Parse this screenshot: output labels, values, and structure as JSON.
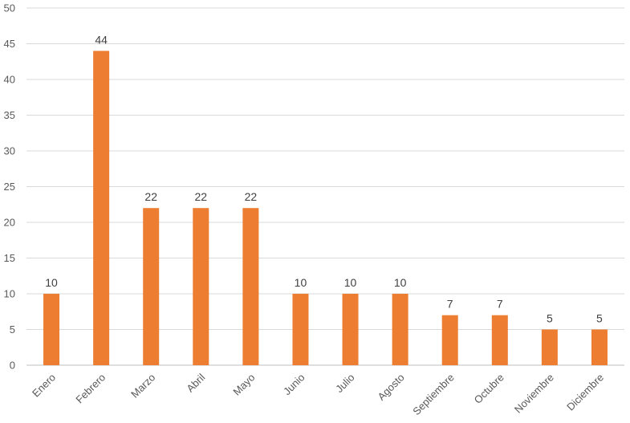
{
  "chart_data": {
    "type": "bar",
    "categories": [
      "Enero",
      "Febrero",
      "Marzo",
      "Abril",
      "Mayo",
      "Junio",
      "Julio",
      "Agosto",
      "Septiembre",
      "Octubre",
      "Noviembre",
      "Diciembre"
    ],
    "values": [
      10,
      44,
      22,
      22,
      22,
      10,
      10,
      10,
      7,
      7,
      5,
      5
    ],
    "yticks": [
      0,
      5,
      10,
      15,
      20,
      25,
      30,
      35,
      40,
      45,
      50
    ],
    "ylim": [
      0,
      50
    ],
    "grid": true,
    "data_labels": true,
    "bar_color": "#ED7D31"
  }
}
